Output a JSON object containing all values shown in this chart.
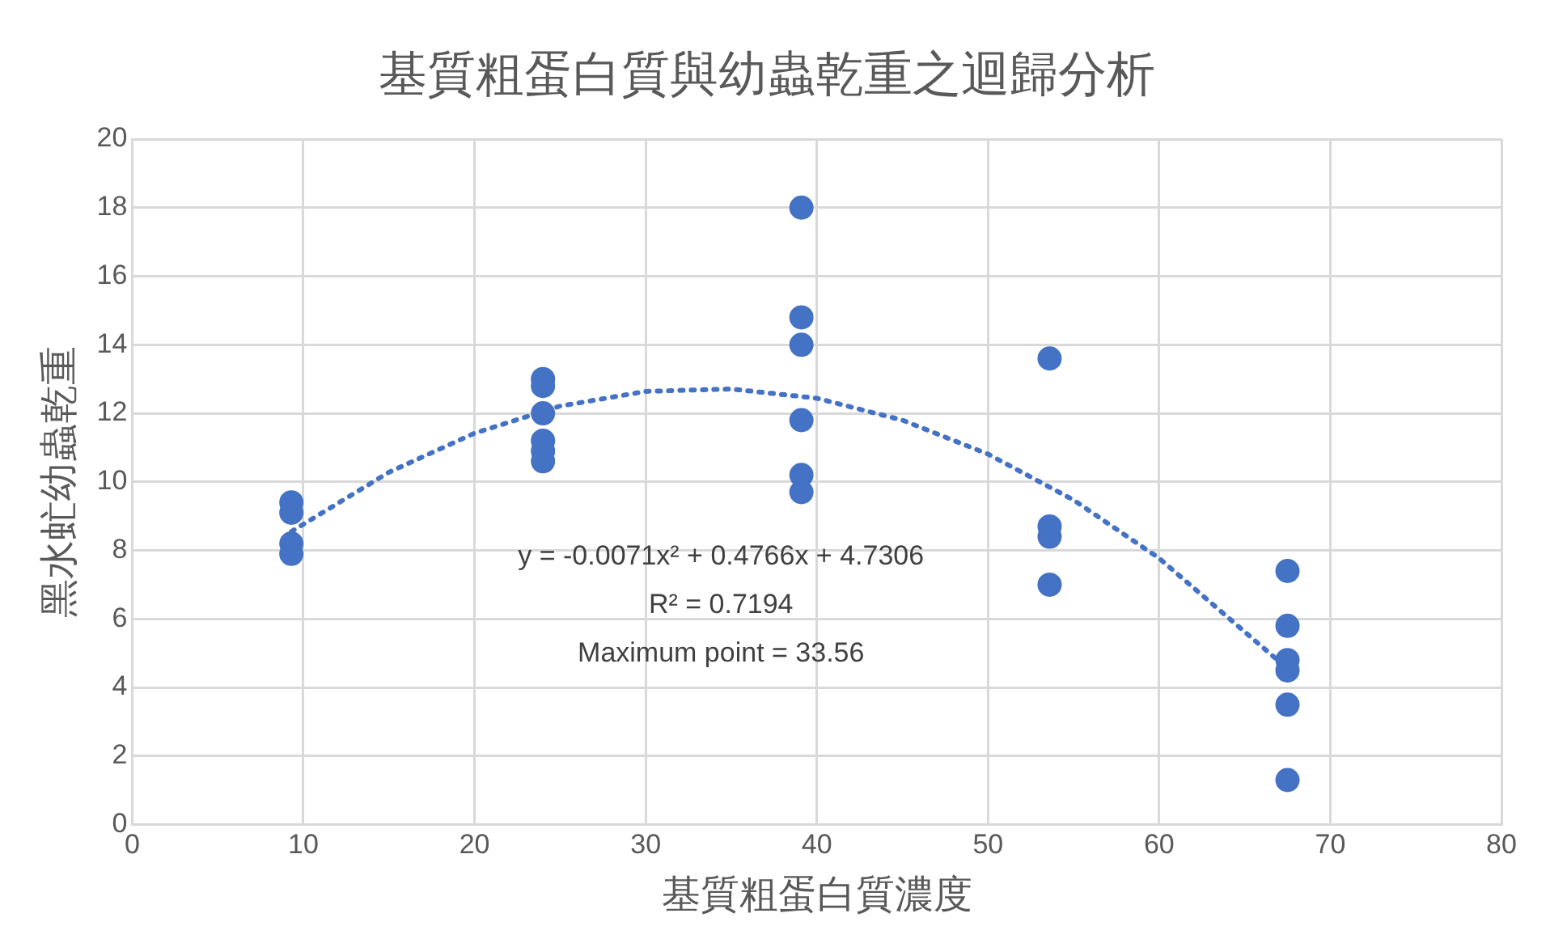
{
  "chart_data": {
    "type": "scatter",
    "title": "基質粗蛋白質與幼蟲乾重之迴歸分析",
    "xlabel": "基質粗蛋白質濃度",
    "ylabel": "黑水虻幼蟲乾重",
    "xlim": [
      0,
      80
    ],
    "xticks": [
      0,
      10,
      20,
      30,
      40,
      50,
      60,
      70,
      80
    ],
    "ylim": [
      0,
      20
    ],
    "yticks": [
      0,
      2,
      4,
      6,
      8,
      10,
      12,
      14,
      16,
      18,
      20
    ],
    "grid": true,
    "legend": false,
    "marker": "circle",
    "series": [
      {
        "color": "#4472c4",
        "x": [
          9.3,
          9.3,
          9.3,
          9.3,
          24,
          24,
          24,
          24,
          24,
          24,
          39.1,
          39.1,
          39.1,
          39.1,
          39.1,
          39.1,
          53.6,
          53.6,
          53.6,
          53.6,
          67.5,
          67.5,
          67.5,
          67.5,
          67.5,
          67.5
        ],
        "values": [
          9.4,
          9.1,
          8.2,
          7.9,
          13.0,
          12.8,
          12.0,
          11.2,
          10.9,
          10.6,
          18.0,
          14.8,
          14.0,
          11.8,
          10.2,
          9.7,
          13.6,
          8.7,
          8.4,
          7.0,
          7.4,
          5.8,
          4.8,
          4.5,
          3.5,
          1.3
        ]
      },
      {
        "type": "line",
        "color": "#4472c4",
        "line_style": "dotted",
        "marker": "none",
        "x": [
          9.3,
          15,
          20,
          25,
          30,
          35,
          40,
          45,
          50,
          55,
          60,
          67.5
        ],
        "values": [
          8.55,
          10.28,
          11.42,
          12.21,
          12.64,
          12.71,
          12.44,
          11.8,
          10.81,
          9.47,
          7.77,
          4.55
        ]
      }
    ],
    "annotations": [
      "y = -0.0071x² + 0.4766x + 4.7306",
      "R² = 0.7194",
      "Maximum point = 33.56"
    ]
  }
}
